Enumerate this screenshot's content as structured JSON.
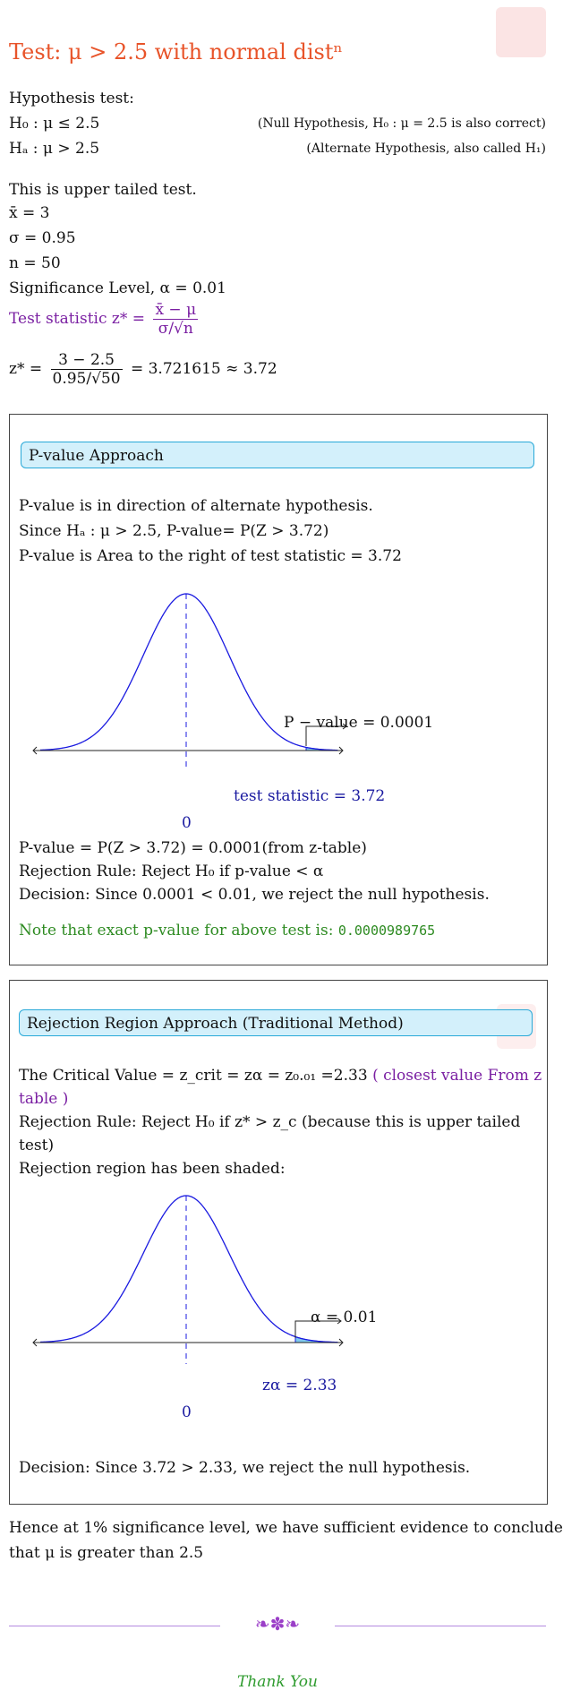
{
  "title": "Test: μ > 2.5 with normal distⁿ",
  "hypothesis": {
    "heading": "Hypothesis test:",
    "h0": "H₀ : μ ≤ 2.5",
    "h0_note": "(Null Hypothesis, H₀ : μ = 2.5 is also correct)",
    "ha": "Hₐ : μ > 2.5",
    "ha_note": "(Alternate Hypothesis, also called H₁)"
  },
  "givens": {
    "tail": "This is upper tailed test.",
    "xbar": "x̄ = 3",
    "sigma": "σ = 0.95",
    "n": "n = 50",
    "alpha": "Significance Level, α = 0.01"
  },
  "test_stat": {
    "label": "Test statistic z* =",
    "num": "x̄ − μ",
    "den": "σ/√n",
    "calc_lhs": "z* =",
    "calc_num": "3 − 2.5",
    "calc_den": "0.95/√50",
    "calc_rhs": "= 3.721615 ≈ 3.72"
  },
  "pvalue": {
    "header": "P-value Approach",
    "l1": "P-value is in direction of alternate hypothesis.",
    "l2": "Since Hₐ : μ > 2.5, P-value= P(Z > 3.72)",
    "l3": "P-value is Area to the right of test statistic = 3.72",
    "curve_label": "P − value = 0.0001",
    "axis_label": "test statistic = 3.72",
    "zero": "0",
    "l4": "P-value = P(Z > 3.72) = 0.0001(from z-table)",
    "l5": "Rejection Rule: Reject H₀ if p-value < α",
    "l6": "Decision: Since 0.0001 < 0.01, we reject the null hypothesis.",
    "note": "Note that exact p-value for above test is:",
    "exact": "0.0000989765"
  },
  "rejection": {
    "header": "Rejection Region Approach (Traditional Method)",
    "l1a": "The Critical Value = z_crit = zα = z₀.₀₁ =2.33",
    "l1b": "( closest value From z",
    "l1c": "table )",
    "l2a": "Rejection Rule: Reject H₀ if z* > z_c (because this is upper tailed",
    "l2b": "test)",
    "l3": "Rejection region has been shaded:",
    "curve_label": "α = 0.01",
    "axis_label": "zα = 2.33",
    "zero": "0",
    "decision": "Decision: Since 3.72 > 2.33, we reject the null hypothesis."
  },
  "conclusion": {
    "l1": "Hence at 1% significance level, we have sufficient evidence to conclude",
    "l2": "that μ is greater than 2.5"
  },
  "ornament": "❧✽❧",
  "thanks": "Thank You",
  "colors": {
    "title": "#e8542a",
    "accent": "#7a1fa2",
    "header_bg": "#d3f0fb",
    "curve": "#1a1ae0"
  }
}
